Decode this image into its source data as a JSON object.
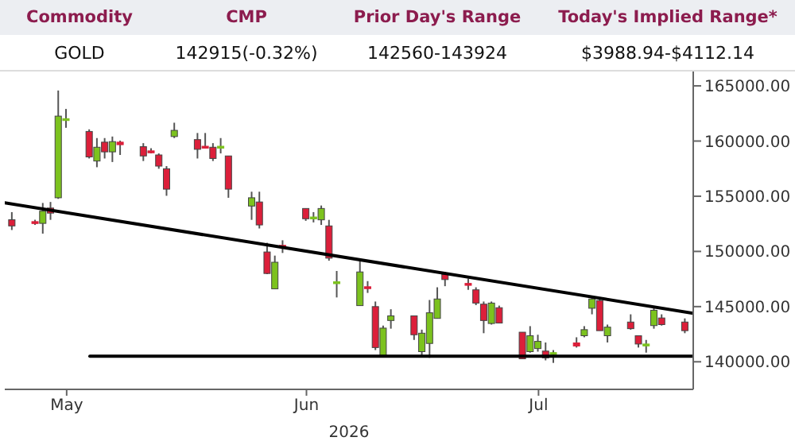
{
  "chart_data": {
    "type": "candlestick",
    "xlabel": "2026",
    "annotations": [
      "Commodity",
      "CMP",
      "Prior Day's Range",
      "Today's Implied Range*",
      "GOLD",
      "142915(-0.32%)",
      "142560-143924",
      "$3988.94-$4112.14"
    ],
    "x": [
      "2026-04-24",
      "2026-04-27",
      "2026-04-28",
      "2026-04-29",
      "2026-04-30",
      "2026-05-01",
      "2026-05-04",
      "2026-05-05",
      "2026-05-06",
      "2026-05-07",
      "2026-05-08",
      "2026-05-11",
      "2026-05-12",
      "2026-05-13",
      "2026-05-14",
      "2026-05-15",
      "2026-05-18",
      "2026-05-19",
      "2026-05-20",
      "2026-05-21",
      "2026-05-22",
      "2026-05-25",
      "2026-05-26",
      "2026-05-27",
      "2026-05-28",
      "2026-05-29",
      "2026-06-01",
      "2026-06-02",
      "2026-06-03",
      "2026-06-04",
      "2026-06-05",
      "2026-06-08",
      "2026-06-09",
      "2026-06-10",
      "2026-06-11",
      "2026-06-12",
      "2026-06-15",
      "2026-06-16",
      "2026-06-17",
      "2026-06-18",
      "2026-06-19",
      "2026-06-22",
      "2026-06-23",
      "2026-06-24",
      "2026-06-25",
      "2026-06-26",
      "2026-06-29",
      "2026-06-30",
      "2026-07-01",
      "2026-07-02",
      "2026-07-03",
      "2026-07-06",
      "2026-07-07",
      "2026-07-08",
      "2026-07-09",
      "2026-07-10",
      "2026-07-13",
      "2026-07-14",
      "2026-07-15",
      "2026-07-16",
      "2026-07-17",
      "2026-07-20"
    ],
    "ohlc": [
      [
        152870,
        153560,
        151940,
        152310
      ],
      [
        152700,
        152870,
        152400,
        152640
      ],
      [
        152540,
        154390,
        151610,
        153650
      ],
      [
        153930,
        154480,
        152860,
        153470
      ],
      [
        154860,
        164580,
        154760,
        162260
      ],
      [
        161950,
        162910,
        161200,
        162030
      ],
      [
        160870,
        161060,
        158420,
        158560
      ],
      [
        158190,
        160270,
        157630,
        159440
      ],
      [
        159900,
        160270,
        158420,
        159020
      ],
      [
        159020,
        160410,
        158100,
        159950
      ],
      [
        159900,
        160040,
        158740,
        159670
      ],
      [
        159490,
        159810,
        158190,
        158650
      ],
      [
        159110,
        159350,
        158880,
        159070
      ],
      [
        158740,
        158880,
        157490,
        157730
      ],
      [
        157490,
        157730,
        155040,
        155640
      ],
      [
        160410,
        161660,
        160270,
        160970
      ],
      [
        160130,
        160730,
        158420,
        159250
      ],
      [
        159530,
        160730,
        159350,
        159480
      ],
      [
        159440,
        159810,
        158190,
        158420
      ],
      [
        159480,
        160270,
        158880,
        159530
      ],
      [
        158650,
        158650,
        154860,
        155640
      ],
      [
        154110,
        155410,
        152860,
        154860
      ],
      [
        154480,
        155410,
        152080,
        152400
      ],
      [
        149950,
        150780,
        147940,
        148000
      ],
      [
        146610,
        149620,
        146600,
        149020
      ],
      [
        150550,
        151010,
        149860,
        150500
      ],
      [
        153890,
        153890,
        152770,
        152960
      ],
      [
        153070,
        153560,
        152630,
        153120
      ],
      [
        152860,
        154160,
        152400,
        153890
      ],
      [
        152310,
        152860,
        149160,
        149390
      ],
      [
        147200,
        148230,
        145830,
        147250
      ],
      [
        145090,
        149160,
        145090,
        148140
      ],
      [
        146800,
        147310,
        146240,
        146750
      ],
      [
        145000,
        145460,
        141060,
        141290
      ],
      [
        140500,
        143280,
        140500,
        143050
      ],
      [
        143740,
        144760,
        143000,
        144160
      ],
      [
        144160,
        144160,
        141980,
        142450
      ],
      [
        140920,
        142910,
        140600,
        142590
      ],
      [
        141660,
        145600,
        140360,
        144440
      ],
      [
        143930,
        146750,
        143930,
        145690
      ],
      [
        147910,
        148140,
        146850,
        147450
      ],
      [
        147100,
        147540,
        146520,
        147050
      ],
      [
        146520,
        146750,
        145130,
        145320
      ],
      [
        145220,
        145460,
        142590,
        143740
      ],
      [
        143470,
        145460,
        143370,
        145320
      ],
      [
        144900,
        145090,
        143510,
        143510
      ],
      [
        142680,
        142680,
        140270,
        140270
      ],
      [
        140920,
        143230,
        140830,
        142360
      ],
      [
        141200,
        142450,
        140920,
        141850
      ],
      [
        140970,
        141750,
        140130,
        140360
      ],
      [
        140810,
        141060,
        139900,
        140830
      ],
      [
        141710,
        142220,
        141290,
        141430
      ],
      [
        142360,
        143230,
        142220,
        142910
      ],
      [
        144850,
        145920,
        144300,
        145690
      ],
      [
        145550,
        145690,
        142820,
        142820
      ],
      [
        142360,
        143370,
        141750,
        143140
      ],
      [
        143600,
        144300,
        142910,
        143000
      ],
      [
        142360,
        142360,
        141290,
        141610
      ],
      [
        141590,
        141980,
        140830,
        141610
      ],
      [
        143280,
        144990,
        143000,
        144670
      ],
      [
        143970,
        144300,
        143280,
        143370
      ],
      [
        143600,
        143930,
        142590,
        142820
      ]
    ],
    "colors": [
      "#dc1f3a",
      "#dc1f3a",
      "#7cc21e",
      "#dc1f3a",
      "#7cc21e",
      "#7cc21e",
      "#dc1f3a",
      "#7cc21e",
      "#dc1f3a",
      "#7cc21e",
      "#dc1f3a",
      "#dc1f3a",
      "#dc1f3a",
      "#dc1f3a",
      "#dc1f3a",
      "#7cc21e",
      "#dc1f3a",
      "#dc1f3a",
      "#dc1f3a",
      "#7cc21e",
      "#dc1f3a",
      "#7cc21e",
      "#dc1f3a",
      "#dc1f3a",
      "#7cc21e",
      "#dc1f3a",
      "#dc1f3a",
      "#7cc21e",
      "#7cc21e",
      "#dc1f3a",
      "#7cc21e",
      "#7cc21e",
      "#dc1f3a",
      "#dc1f3a",
      "#7cc21e",
      "#7cc21e",
      "#dc1f3a",
      "#7cc21e",
      "#7cc21e",
      "#7cc21e",
      "#dc1f3a",
      "#dc1f3a",
      "#dc1f3a",
      "#dc1f3a",
      "#7cc21e",
      "#dc1f3a",
      "#dc1f3a",
      "#7cc21e",
      "#7cc21e",
      "#dc1f3a",
      "#7cc21e",
      "#dc1f3a",
      "#7cc21e",
      "#7cc21e",
      "#dc1f3a",
      "#7cc21e",
      "#dc1f3a",
      "#dc1f3a",
      "#7cc21e",
      "#7cc21e",
      "#dc1f3a",
      "#dc1f3a"
    ],
    "series": [
      {
        "type": "line",
        "color": "#000000",
        "x": [
          "2026-04-23",
          "2026-07-21"
        ],
        "values": [
          154400,
          144400
        ]
      },
      {
        "type": "line",
        "color": "#000000",
        "x": [
          "2026-05-04",
          "2026-07-21"
        ],
        "values": [
          140500,
          140500
        ]
      }
    ],
    "xlim": [
      "2026-04-23",
      "2026-07-21"
    ],
    "xticks": [
      {
        "value": "2026-05-01",
        "label": "May"
      },
      {
        "value": "2026-06-01",
        "label": "Jun"
      },
      {
        "value": "2026-07-01",
        "label": "Jul"
      }
    ],
    "ylim": [
      137500,
      166300
    ],
    "yticks": [
      {
        "value": 140000,
        "label": "140000.00"
      },
      {
        "value": 145000,
        "label": "145000.00"
      },
      {
        "value": 150000,
        "label": "150000.00"
      },
      {
        "value": 155000,
        "label": "155000.00"
      },
      {
        "value": 160000,
        "label": "160000.00"
      },
      {
        "value": 165000,
        "label": "165000.00"
      }
    ],
    "marker": "none",
    "line_style": "solid"
  }
}
